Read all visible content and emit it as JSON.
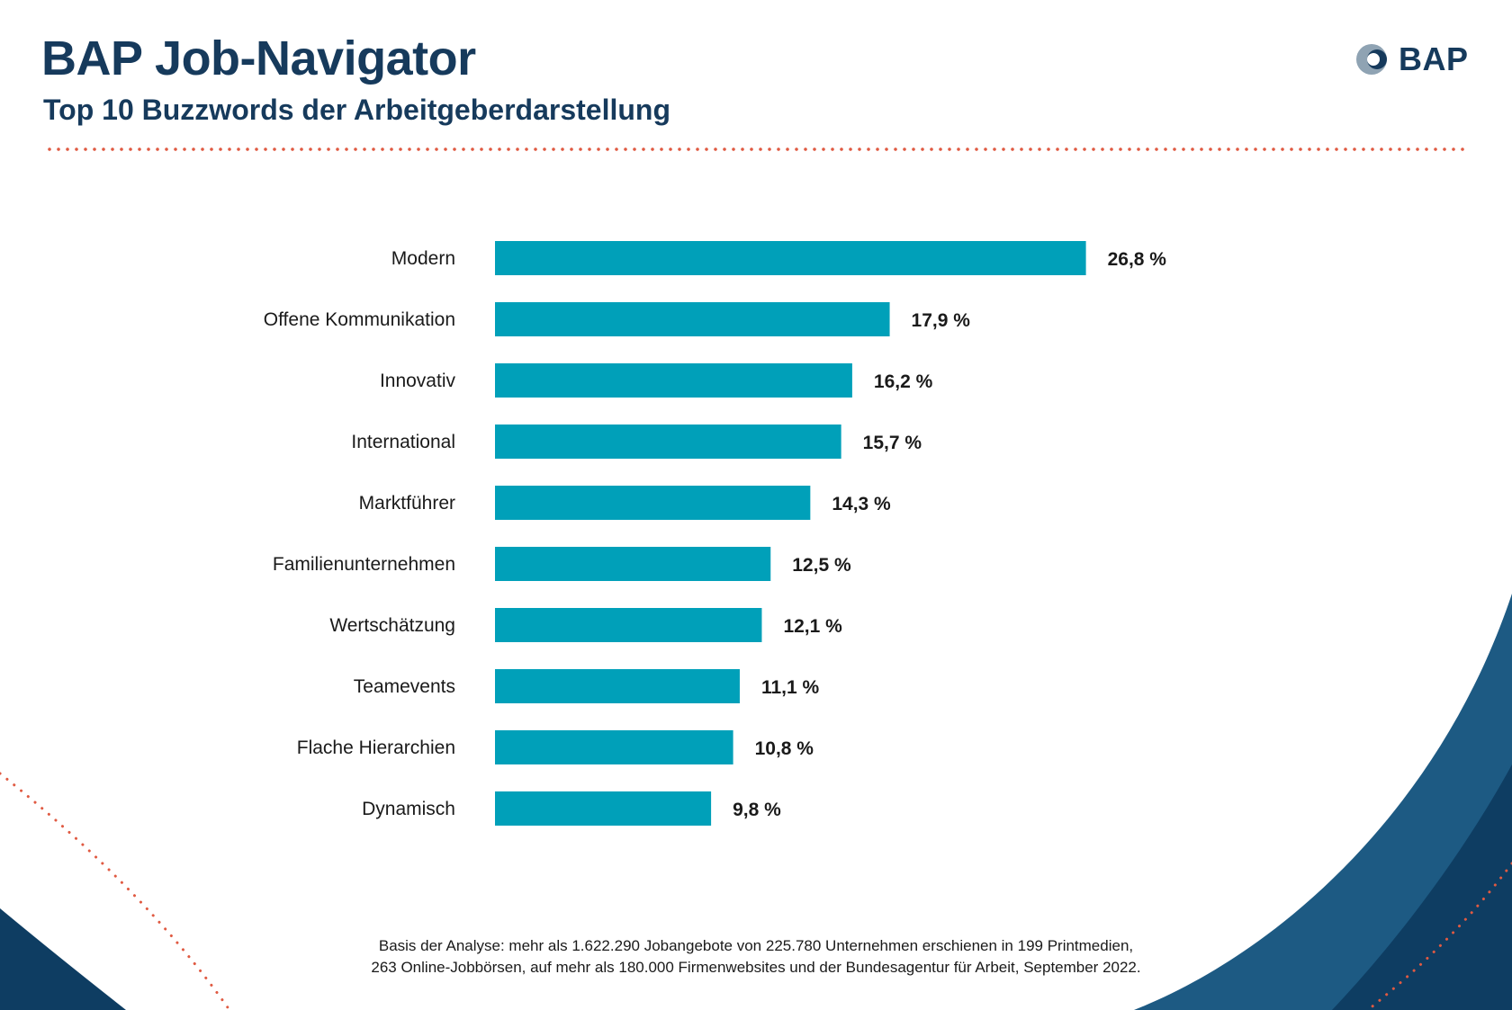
{
  "header": {
    "title": "BAP Job-Navigator",
    "subtitle": "Top 10 Buzzwords der Arbeitgeberdarstellung",
    "logo_text": "BAP"
  },
  "colors": {
    "bar": "#00a0b9",
    "navy": "#163a5c",
    "dots": "#e05a42",
    "wave_dark": "#0e3d62",
    "wave_mid": "#1d5a83"
  },
  "chart_data": {
    "type": "bar",
    "orientation": "horizontal",
    "title": "Top 10 Buzzwords der Arbeitgeberdarstellung",
    "categories": [
      "Modern",
      "Offene Kommunikation",
      "Innovativ",
      "International",
      "Marktführer",
      "Familienunternehmen",
      "Wertschätzung",
      "Teamevents",
      "Flache Hierarchien",
      "Dynamisch"
    ],
    "values": [
      26.8,
      17.9,
      16.2,
      15.7,
      14.3,
      12.5,
      12.1,
      11.1,
      10.8,
      9.8
    ],
    "value_labels": [
      "26,8 %",
      "17,9 %",
      "16,2 %",
      "15,7 %",
      "14,3 %",
      "12,5 %",
      "12,1 %",
      "11,1 %",
      "10,8 %",
      "9,8 %"
    ],
    "unit": "%",
    "grid": false,
    "legend": "none"
  },
  "footnote": {
    "line1": "Basis der Analyse: mehr als 1.622.290 Jobangebote von 225.780 Unternehmen erschienen in 199 Printmedien,",
    "line2": "263 Online-Jobbörsen, auf mehr als 180.000 Firmenwebsites und der Bundesagentur für Arbeit, September 2022."
  }
}
